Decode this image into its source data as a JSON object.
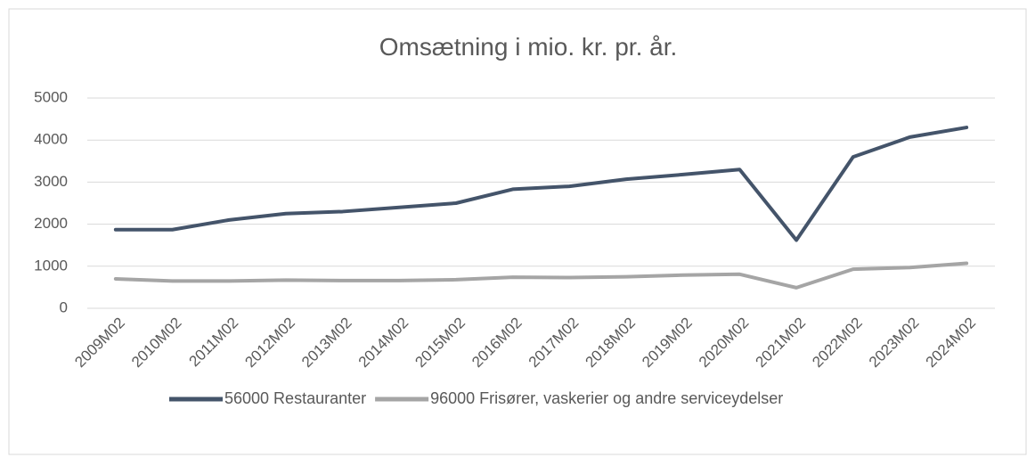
{
  "chart_data": {
    "type": "line",
    "title": "Omsætning i mio. kr. pr. år.",
    "categories": [
      "2009M02",
      "2010M02",
      "2011M02",
      "2012M02",
      "2013M02",
      "2014M02",
      "2015M02",
      "2016M02",
      "2017M02",
      "2018M02",
      "2019M02",
      "2020M02",
      "2021M02",
      "2022M02",
      "2023M02",
      "2024M02"
    ],
    "series": [
      {
        "name": "56000 Restauranter",
        "color": "#44546a",
        "values": [
          1870,
          1870,
          2100,
          2250,
          2300,
          2400,
          2500,
          2830,
          2900,
          3070,
          3180,
          3300,
          1620,
          3600,
          4070,
          4300
        ]
      },
      {
        "name": "96000 Frisører, vaskerier og andre serviceydelser",
        "color": "#a5a5a5",
        "values": [
          700,
          650,
          650,
          670,
          660,
          660,
          680,
          740,
          730,
          750,
          790,
          810,
          490,
          930,
          970,
          1070
        ]
      }
    ],
    "ylim": [
      0,
      5000
    ],
    "yticks": [
      0,
      1000,
      2000,
      3000,
      4000,
      5000
    ],
    "grid": true,
    "legend": "bottom"
  }
}
